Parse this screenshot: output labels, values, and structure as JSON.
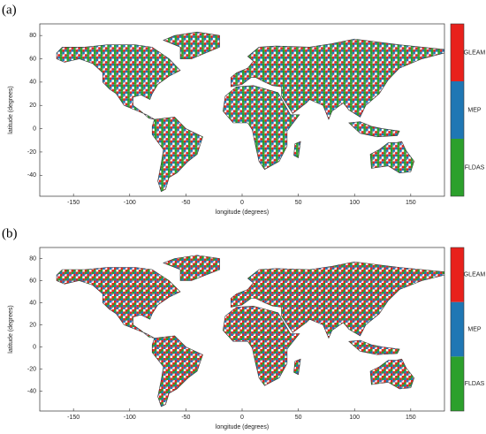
{
  "chart_data": [
    {
      "type": "map",
      "panel_label": "(a)",
      "xlabel": "longitude (degrees)",
      "ylabel": "latitude (degrees)",
      "xlim": [
        -180,
        180
      ],
      "ylim": [
        -58,
        90
      ],
      "xticks": [
        -150,
        -100,
        -50,
        0,
        50,
        100,
        150
      ],
      "yticks": [
        -40,
        -20,
        0,
        20,
        40,
        60,
        80
      ],
      "colorbar": {
        "labels": [
          "FLDAS",
          "MEP",
          "GLEAM"
        ],
        "colors": [
          "#2ca02c",
          "#1f77b4",
          "#e8211c"
        ]
      }
    },
    {
      "type": "map",
      "panel_label": "(b)",
      "xlabel": "longitude (degrees)",
      "ylabel": "latitude (degrees)",
      "xlim": [
        -180,
        180
      ],
      "ylim": [
        -58,
        90
      ],
      "xticks": [
        -150,
        -100,
        -50,
        0,
        50,
        100,
        150
      ],
      "yticks": [
        -40,
        -20,
        0,
        20,
        40,
        60,
        80
      ],
      "colorbar": {
        "labels": [
          "FLDAS",
          "MEP",
          "GLEAM"
        ],
        "colors": [
          "#2ca02c",
          "#1f77b4",
          "#e8211c"
        ]
      }
    }
  ]
}
